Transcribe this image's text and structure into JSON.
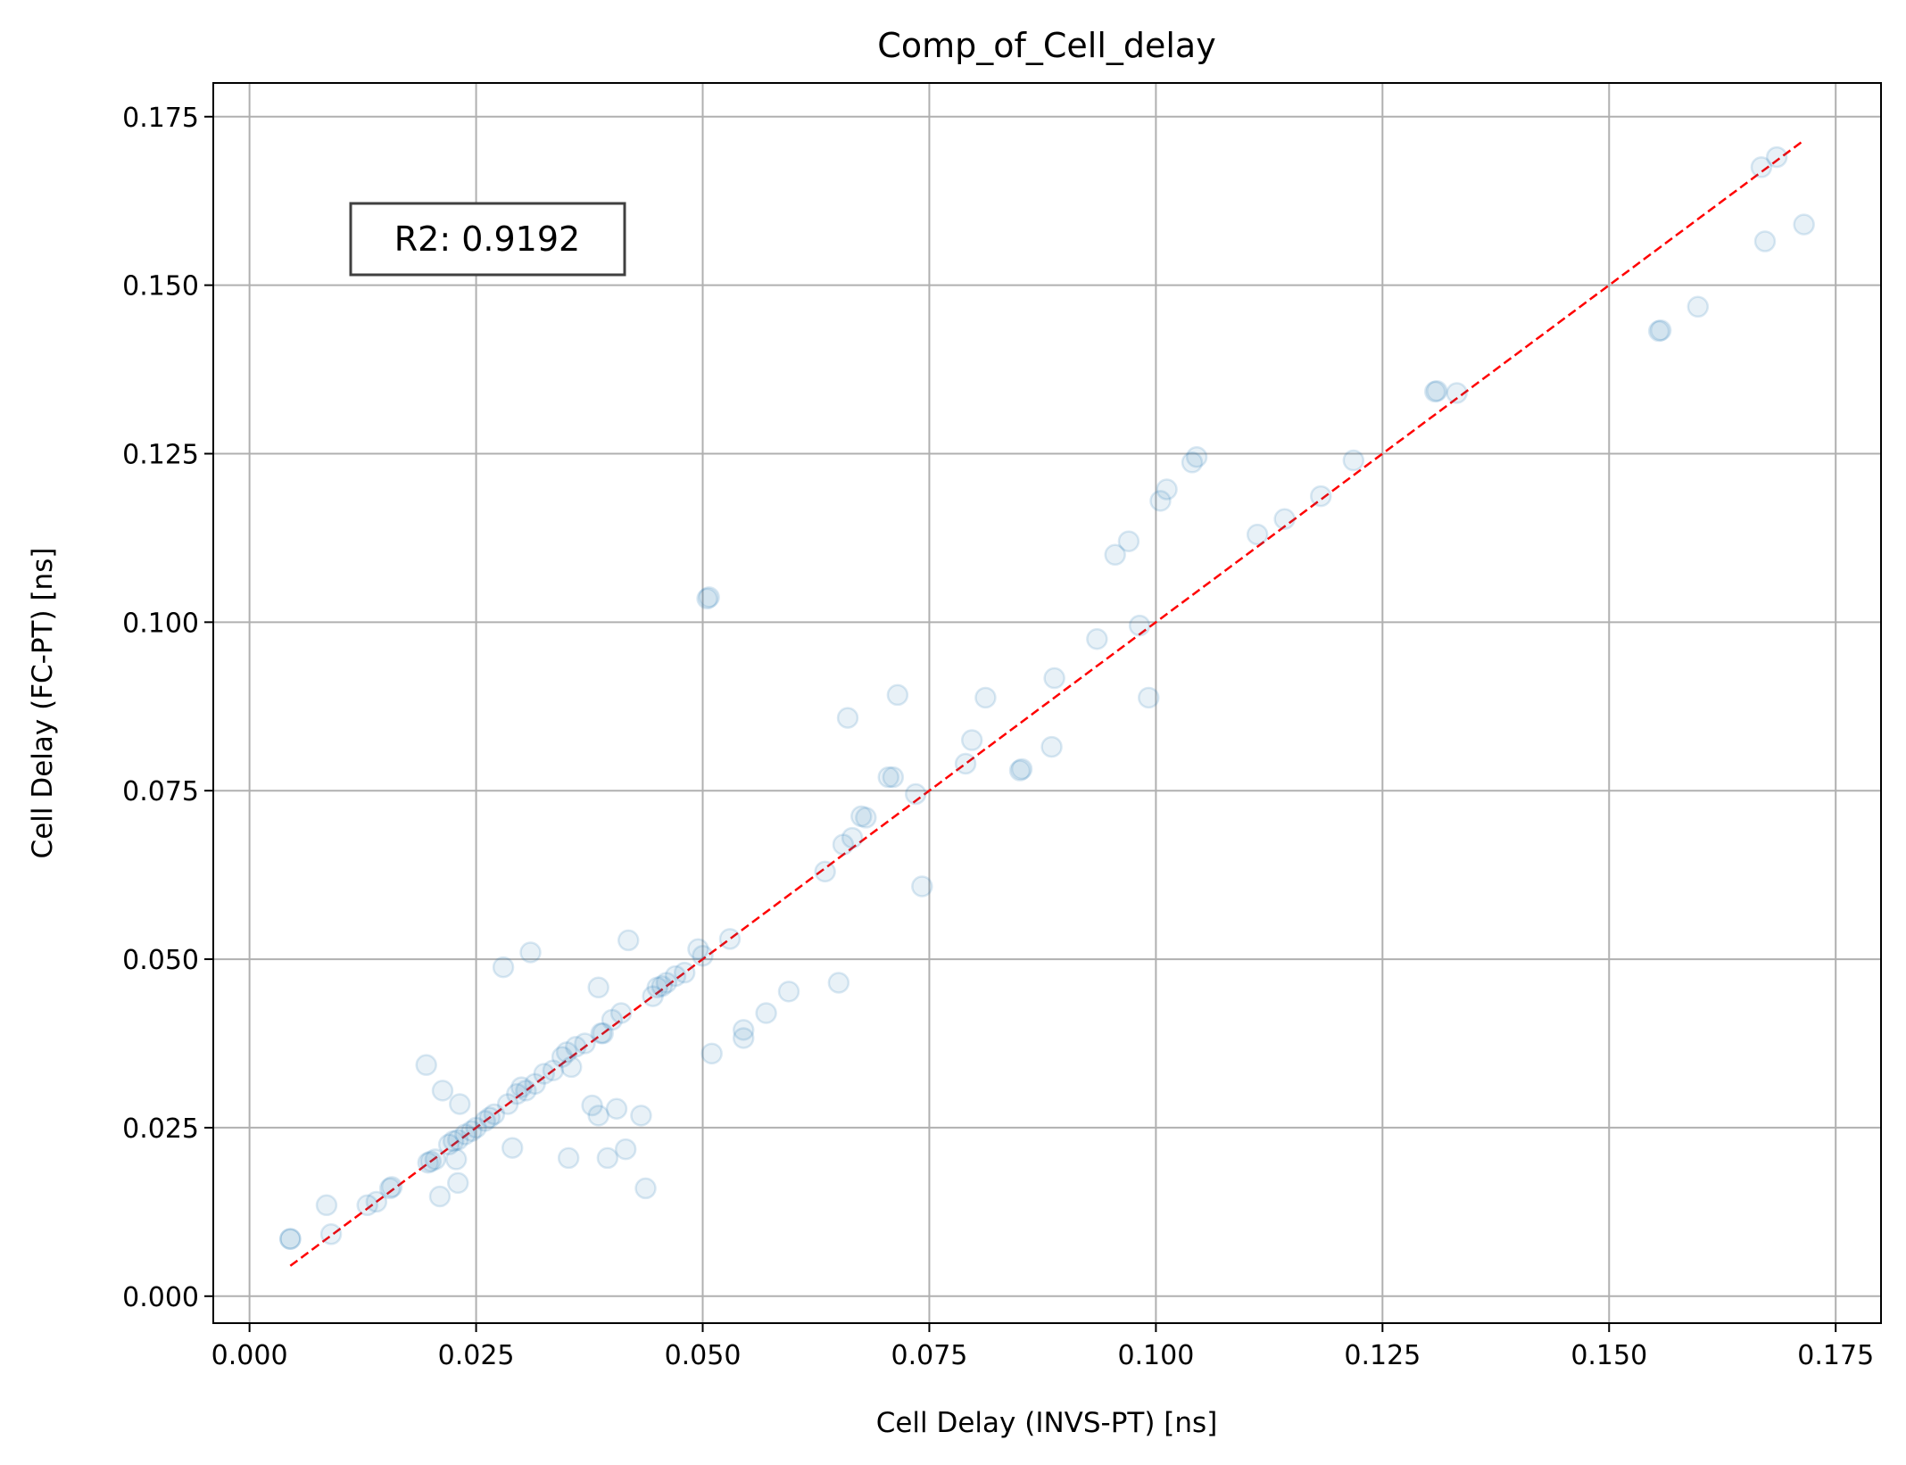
{
  "chart_data": {
    "type": "scatter",
    "title": "Comp_of_Cell_delay",
    "xlabel": "Cell Delay (INVS-PT) [ns]",
    "ylabel": "Cell Delay (FC-PT) [ns]",
    "xlim": [
      -0.004,
      0.18
    ],
    "ylim": [
      -0.004,
      0.18
    ],
    "xticks": [
      "0.000",
      "0.025",
      "0.050",
      "0.075",
      "0.100",
      "0.125",
      "0.150",
      "0.175"
    ],
    "yticks": [
      "0.000",
      "0.025",
      "0.050",
      "0.075",
      "0.100",
      "0.125",
      "0.150",
      "0.175"
    ],
    "grid": true,
    "annotation": "R2: 0.9192",
    "colors": {
      "points": "#1f77b4",
      "fit_line": "#ff0000",
      "grid": "#b0b0b0"
    },
    "fit_line": {
      "x": [
        0.0045,
        0.1715
      ],
      "y": [
        0.0045,
        0.1715
      ]
    },
    "points": [
      [
        0.0045,
        0.0085
      ],
      [
        0.0045,
        0.0085
      ],
      [
        0.0085,
        0.0135
      ],
      [
        0.009,
        0.0092
      ],
      [
        0.013,
        0.0135
      ],
      [
        0.014,
        0.014
      ],
      [
        0.0155,
        0.016
      ],
      [
        0.0157,
        0.0162
      ],
      [
        0.0195,
        0.0343
      ],
      [
        0.0197,
        0.0198
      ],
      [
        0.02,
        0.02
      ],
      [
        0.0205,
        0.0203
      ],
      [
        0.021,
        0.0148
      ],
      [
        0.0213,
        0.0305
      ],
      [
        0.022,
        0.0225
      ],
      [
        0.0225,
        0.023
      ],
      [
        0.0228,
        0.0203
      ],
      [
        0.023,
        0.0168
      ],
      [
        0.023,
        0.0232
      ],
      [
        0.0232,
        0.0285
      ],
      [
        0.0238,
        0.024
      ],
      [
        0.0245,
        0.0245
      ],
      [
        0.025,
        0.025
      ],
      [
        0.026,
        0.026
      ],
      [
        0.0265,
        0.0265
      ],
      [
        0.027,
        0.027
      ],
      [
        0.028,
        0.0488
      ],
      [
        0.0285,
        0.0285
      ],
      [
        0.029,
        0.022
      ],
      [
        0.0295,
        0.03
      ],
      [
        0.03,
        0.031
      ],
      [
        0.0305,
        0.0305
      ],
      [
        0.031,
        0.051
      ],
      [
        0.0315,
        0.0315
      ],
      [
        0.0325,
        0.033
      ],
      [
        0.0335,
        0.0335
      ],
      [
        0.0345,
        0.0355
      ],
      [
        0.035,
        0.0362
      ],
      [
        0.0352,
        0.0205
      ],
      [
        0.0355,
        0.034
      ],
      [
        0.036,
        0.037
      ],
      [
        0.037,
        0.0375
      ],
      [
        0.0378,
        0.0283
      ],
      [
        0.0385,
        0.0458
      ],
      [
        0.0385,
        0.0268
      ],
      [
        0.0388,
        0.039
      ],
      [
        0.039,
        0.039
      ],
      [
        0.0395,
        0.0205
      ],
      [
        0.04,
        0.041
      ],
      [
        0.0405,
        0.0278
      ],
      [
        0.041,
        0.042
      ],
      [
        0.0415,
        0.0218
      ],
      [
        0.0418,
        0.0528
      ],
      [
        0.0432,
        0.0268
      ],
      [
        0.0437,
        0.016
      ],
      [
        0.0445,
        0.0445
      ],
      [
        0.045,
        0.0458
      ],
      [
        0.0455,
        0.046
      ],
      [
        0.046,
        0.0465
      ],
      [
        0.047,
        0.0475
      ],
      [
        0.048,
        0.048
      ],
      [
        0.0495,
        0.0515
      ],
      [
        0.05,
        0.0505
      ],
      [
        0.0505,
        0.1035
      ],
      [
        0.0507,
        0.1037
      ],
      [
        0.051,
        0.036
      ],
      [
        0.053,
        0.053
      ],
      [
        0.0545,
        0.0395
      ],
      [
        0.0545,
        0.0383
      ],
      [
        0.057,
        0.042
      ],
      [
        0.0595,
        0.0452
      ],
      [
        0.0635,
        0.063
      ],
      [
        0.065,
        0.0465
      ],
      [
        0.0655,
        0.067
      ],
      [
        0.066,
        0.0858
      ],
      [
        0.0665,
        0.068
      ],
      [
        0.0675,
        0.0712
      ],
      [
        0.068,
        0.071
      ],
      [
        0.0705,
        0.077
      ],
      [
        0.071,
        0.077
      ],
      [
        0.0715,
        0.0892
      ],
      [
        0.0735,
        0.0745
      ],
      [
        0.0742,
        0.0608
      ],
      [
        0.079,
        0.079
      ],
      [
        0.0797,
        0.0825
      ],
      [
        0.0812,
        0.0888
      ],
      [
        0.085,
        0.078
      ],
      [
        0.0852,
        0.0782
      ],
      [
        0.0885,
        0.0815
      ],
      [
        0.0888,
        0.0917
      ],
      [
        0.0935,
        0.0975
      ],
      [
        0.0955,
        0.11
      ],
      [
        0.097,
        0.112
      ],
      [
        0.0982,
        0.0995
      ],
      [
        0.0992,
        0.0888
      ],
      [
        0.1005,
        0.118
      ],
      [
        0.1012,
        0.1197
      ],
      [
        0.104,
        0.1237
      ],
      [
        0.1045,
        0.1245
      ],
      [
        0.1112,
        0.113
      ],
      [
        0.1142,
        0.1153
      ],
      [
        0.1182,
        0.1187
      ],
      [
        0.1218,
        0.124
      ],
      [
        0.1308,
        0.1342
      ],
      [
        0.131,
        0.1343
      ],
      [
        0.1332,
        0.134
      ],
      [
        0.1555,
        0.1432
      ],
      [
        0.1557,
        0.1433
      ],
      [
        0.1598,
        0.1468
      ],
      [
        0.1668,
        0.1675
      ],
      [
        0.1672,
        0.1565
      ],
      [
        0.1685,
        0.169
      ],
      [
        0.1715,
        0.159
      ]
    ]
  }
}
